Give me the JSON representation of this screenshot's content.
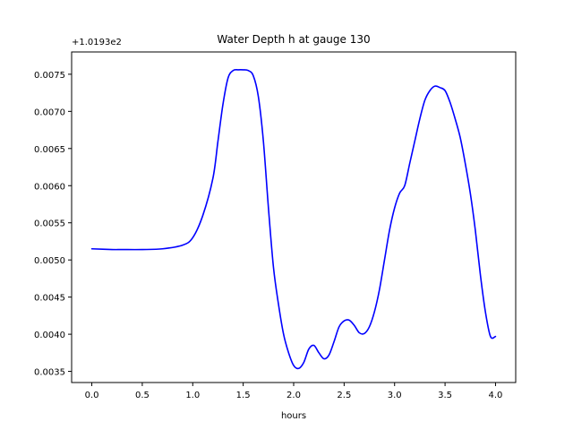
{
  "chart_data": {
    "type": "line",
    "title": "Water Depth h at gauge 130",
    "xlabel": "hours",
    "ylabel": "",
    "y_offset_label": "+1.0193e2",
    "xlim": [
      -0.2,
      4.2
    ],
    "ylim": [
      0.00335,
      0.0078
    ],
    "x_ticks": [
      0.0,
      0.5,
      1.0,
      1.5,
      2.0,
      2.5,
      3.0,
      3.5,
      4.0
    ],
    "x_tick_labels": [
      "0.0",
      "0.5",
      "1.0",
      "1.5",
      "2.0",
      "2.5",
      "3.0",
      "3.5",
      "4.0"
    ],
    "y_ticks": [
      0.0035,
      0.004,
      0.0045,
      0.005,
      0.0055,
      0.006,
      0.0065,
      0.007,
      0.0075
    ],
    "y_tick_labels": [
      "0.0035",
      "0.0040",
      "0.0045",
      "0.0050",
      "0.0055",
      "0.0060",
      "0.0065",
      "0.0070",
      "0.0075"
    ],
    "grid": false,
    "series": [
      {
        "color": "#0000ff",
        "x": [
          0.0,
          0.2,
          0.3,
          0.5,
          0.7,
          0.9,
          1.0,
          1.1,
          1.2,
          1.25,
          1.3,
          1.35,
          1.4,
          1.45,
          1.5,
          1.55,
          1.6,
          1.65,
          1.7,
          1.75,
          1.8,
          1.85,
          1.9,
          1.95,
          2.0,
          2.05,
          2.1,
          2.15,
          2.2,
          2.25,
          2.3,
          2.35,
          2.4,
          2.45,
          2.5,
          2.55,
          2.6,
          2.65,
          2.7,
          2.75,
          2.8,
          2.85,
          2.9,
          2.95,
          3.0,
          3.05,
          3.1,
          3.15,
          3.2,
          3.25,
          3.3,
          3.35,
          3.4,
          3.45,
          3.5,
          3.55,
          3.6,
          3.65,
          3.7,
          3.75,
          3.8,
          3.85,
          3.9,
          3.95,
          4.0
        ],
        "values": [
          0.00515,
          0.00514,
          0.00514,
          0.00514,
          0.00515,
          0.0052,
          0.0053,
          0.0056,
          0.0061,
          0.0066,
          0.0071,
          0.00745,
          0.00755,
          0.00756,
          0.00756,
          0.00755,
          0.00748,
          0.0072,
          0.0066,
          0.0057,
          0.0049,
          0.0044,
          0.004,
          0.00375,
          0.00358,
          0.00354,
          0.00362,
          0.0038,
          0.00385,
          0.00375,
          0.00367,
          0.00372,
          0.0039,
          0.0041,
          0.00418,
          0.00419,
          0.00412,
          0.00402,
          0.00401,
          0.0041,
          0.0043,
          0.0046,
          0.005,
          0.0054,
          0.0057,
          0.0059,
          0.006,
          0.0063,
          0.0066,
          0.0069,
          0.00715,
          0.00728,
          0.00734,
          0.00732,
          0.00728,
          0.00712,
          0.0069,
          0.00665,
          0.0063,
          0.0059,
          0.0054,
          0.0048,
          0.0043,
          0.00397,
          0.00397
        ]
      }
    ]
  }
}
